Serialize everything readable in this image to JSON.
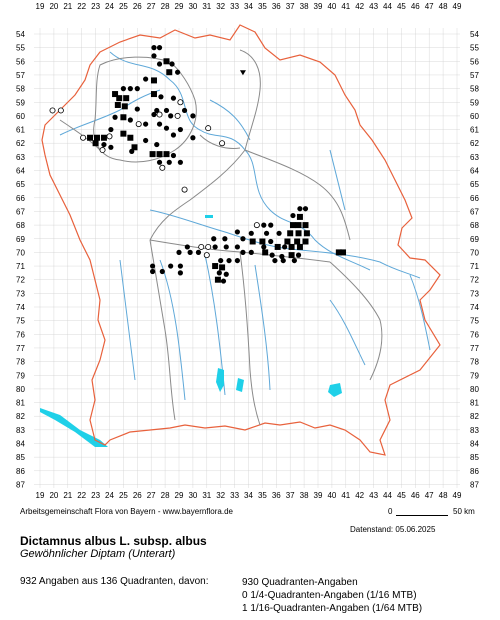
{
  "map": {
    "columns": [
      "19",
      "20",
      "21",
      "22",
      "23",
      "24",
      "25",
      "26",
      "27",
      "28",
      "29",
      "30",
      "31",
      "32",
      "33",
      "34",
      "35",
      "36",
      "37",
      "38",
      "39",
      "40",
      "41",
      "42",
      "43",
      "44",
      "45",
      "46",
      "47",
      "48",
      "49"
    ],
    "rows": [
      "54",
      "55",
      "56",
      "57",
      "58",
      "59",
      "60",
      "61",
      "62",
      "63",
      "64",
      "65",
      "66",
      "67",
      "68",
      "69",
      "70",
      "71",
      "72",
      "73",
      "74",
      "75",
      "76",
      "77",
      "78",
      "79",
      "80",
      "81",
      "82",
      "83",
      "84",
      "85",
      "86",
      "87"
    ],
    "colors": {
      "state_border": "#e8613c",
      "district_border": "#8a8a8a",
      "rivers": "#5fa8d8",
      "lakes": "#1fd0e8",
      "grid": "#cfcfcf",
      "marker": "#000000"
    },
    "marker_legend": {
      "filled_square": "Quadranten-Angabe",
      "filled_circle": "Nachweis",
      "open_circle": "historischer Nachweis"
    }
  },
  "footer": {
    "credit": "Arbeitsgemeinschaft Flora von Bayern - www.bayernflora.de",
    "scale_start": "0",
    "scale_end": "50 km",
    "date": "Datenstand: 05.06.2025"
  },
  "species": {
    "scientific_name": "Dictamnus albus L. subsp. albus",
    "common_name": "Gewöhnlicher Diptam (Unterart)"
  },
  "stats": {
    "total": "932 Angaben aus 136 Quadranten, davon:",
    "line1": "930 Quadranten-Angaben",
    "line2": "0 1/4-Quadranten-Angaben (1/16 MTB)",
    "line3": "1 1/16-Quadranten-Angaben (1/64 MTB)"
  }
}
